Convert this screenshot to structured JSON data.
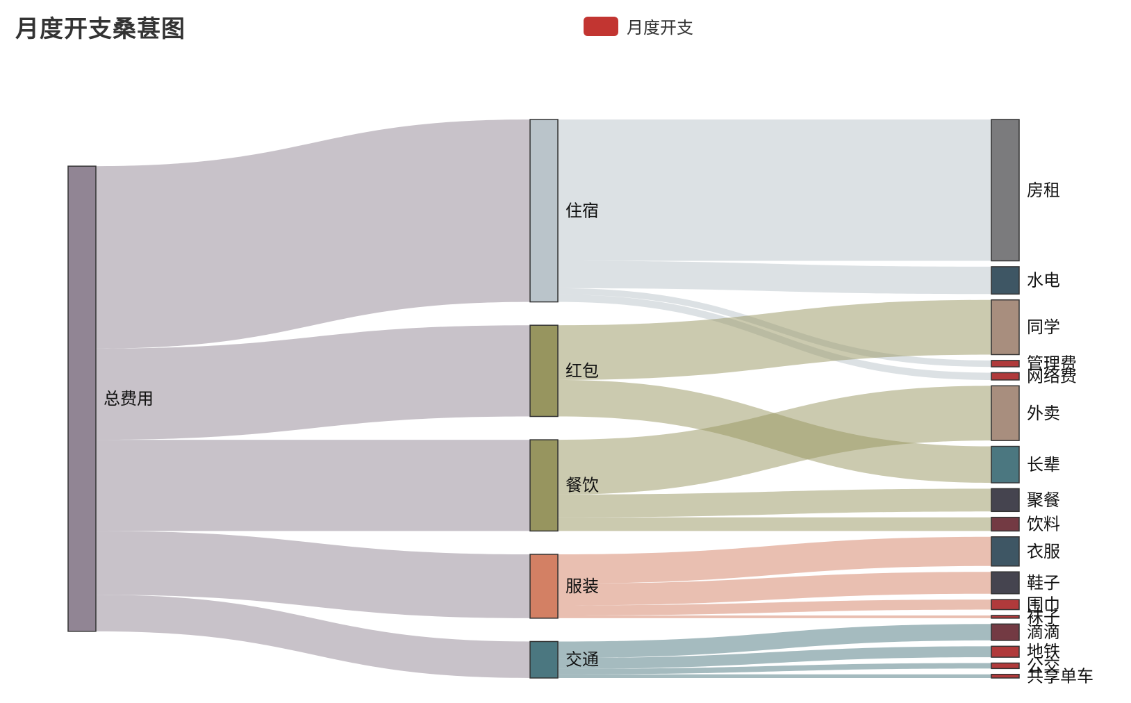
{
  "title": "月度开支桑葚图",
  "legend": {
    "label": "月度开支",
    "color": "#c23531"
  },
  "chart_data": {
    "type": "sankey",
    "title": "月度开支桑葚图",
    "series_name": "月度开支",
    "nodes": [
      {
        "name": "总费用",
        "color": "#918594"
      },
      {
        "name": "住宿",
        "color": "#bac4ca"
      },
      {
        "name": "红包",
        "color": "#97955f"
      },
      {
        "name": "餐饮",
        "color": "#97955f"
      },
      {
        "name": "服装",
        "color": "#d38064"
      },
      {
        "name": "交通",
        "color": "#4b7780"
      },
      {
        "name": "房租",
        "color": "#7b7b7d"
      },
      {
        "name": "水电",
        "color": "#3e5664"
      },
      {
        "name": "同学",
        "color": "#a88e7e"
      },
      {
        "name": "管理费",
        "color": "#b03a3b"
      },
      {
        "name": "网络费",
        "color": "#b03a3b"
      },
      {
        "name": "外卖",
        "color": "#a88e7e"
      },
      {
        "name": "长辈",
        "color": "#4b7780"
      },
      {
        "name": "聚餐",
        "color": "#45444f"
      },
      {
        "name": "饮料",
        "color": "#733a43"
      },
      {
        "name": "衣服",
        "color": "#3e5664"
      },
      {
        "name": "鞋子",
        "color": "#45444f"
      },
      {
        "name": "围巾",
        "color": "#b03a3b"
      },
      {
        "name": "袜子",
        "color": "#b03a3b"
      },
      {
        "name": "滴滴",
        "color": "#733a43"
      },
      {
        "name": "地铁",
        "color": "#b03a3b"
      },
      {
        "name": "公交",
        "color": "#b03a3b"
      },
      {
        "name": "共享单车",
        "color": "#b03a3b"
      }
    ],
    "links": [
      {
        "source": "总费用",
        "target": "住宿",
        "value": 2000
      },
      {
        "source": "总费用",
        "target": "红包",
        "value": 1000
      },
      {
        "source": "总费用",
        "target": "餐饮",
        "value": 1000
      },
      {
        "source": "总费用",
        "target": "服装",
        "value": 700
      },
      {
        "source": "总费用",
        "target": "交通",
        "value": 400
      },
      {
        "source": "住宿",
        "target": "房租",
        "value": 1550
      },
      {
        "source": "住宿",
        "target": "水电",
        "value": 300
      },
      {
        "source": "住宿",
        "target": "管理费",
        "value": 70
      },
      {
        "source": "住宿",
        "target": "网络费",
        "value": 80
      },
      {
        "source": "红包",
        "target": "同学",
        "value": 600
      },
      {
        "source": "红包",
        "target": "长辈",
        "value": 400
      },
      {
        "source": "餐饮",
        "target": "外卖",
        "value": 600
      },
      {
        "source": "餐饮",
        "target": "聚餐",
        "value": 250
      },
      {
        "source": "餐饮",
        "target": "饮料",
        "value": 150
      },
      {
        "source": "服装",
        "target": "衣服",
        "value": 320
      },
      {
        "source": "服装",
        "target": "鞋子",
        "value": 240
      },
      {
        "source": "服装",
        "target": "围巾",
        "value": 110
      },
      {
        "source": "服装",
        "target": "袜子",
        "value": 30
      },
      {
        "source": "交通",
        "target": "滴滴",
        "value": 180
      },
      {
        "source": "交通",
        "target": "地铁",
        "value": 120
      },
      {
        "source": "交通",
        "target": "公交",
        "value": 60
      },
      {
        "source": "交通",
        "target": "共享单车",
        "value": 40
      }
    ]
  }
}
